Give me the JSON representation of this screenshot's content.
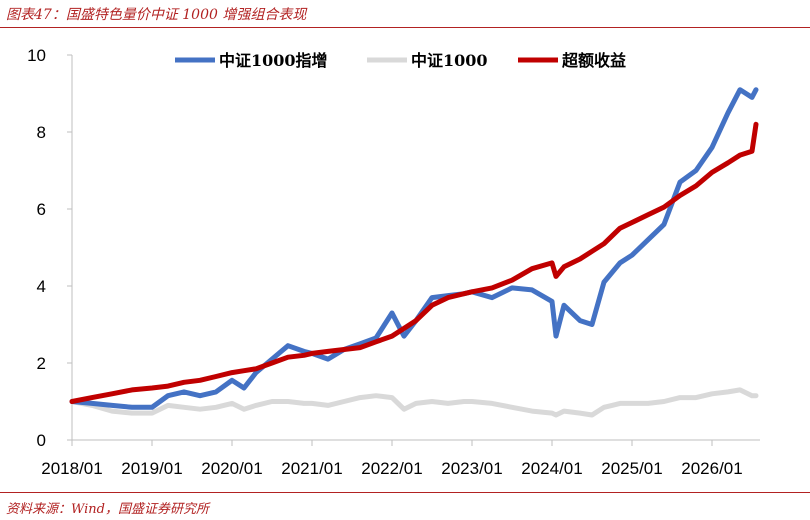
{
  "caption": "图表47：国盛特色量价中证 1000 增强组合表现",
  "source": "资料来源：Wind，国盛证券研究所",
  "chart_data": {
    "type": "line",
    "ylim": [
      0,
      10
    ],
    "yticks": [
      "0",
      "2",
      "4",
      "6",
      "8",
      "10"
    ],
    "xticks": [
      "2018/01",
      "2019/01",
      "2020/01",
      "2021/01",
      "2022/01",
      "2023/01",
      "2024/01",
      "2025/01",
      "2026/01"
    ],
    "x": [
      2018.0,
      2018.25,
      2018.5,
      2018.75,
      2019.0,
      2019.2,
      2019.4,
      2019.6,
      2019.8,
      2020.0,
      2020.15,
      2020.3,
      2020.5,
      2020.7,
      2020.9,
      2021.0,
      2021.2,
      2021.4,
      2021.6,
      2021.8,
      2022.0,
      2022.15,
      2022.3,
      2022.5,
      2022.7,
      2022.9,
      2023.0,
      2023.25,
      2023.5,
      2023.75,
      2024.0,
      2024.05,
      2024.15,
      2024.35,
      2024.5,
      2024.65,
      2024.75,
      2024.85,
      2025.0,
      2025.2,
      2025.4,
      2025.6,
      2025.8,
      2026.0,
      2026.2,
      2026.35,
      2026.5,
      2026.55
    ],
    "series": [
      {
        "name": "中证1000指增",
        "color": "#4472c4",
        "values": [
          1.0,
          0.95,
          0.9,
          0.85,
          0.85,
          1.15,
          1.25,
          1.15,
          1.25,
          1.55,
          1.35,
          1.75,
          2.1,
          2.45,
          2.3,
          2.25,
          2.1,
          2.35,
          2.5,
          2.65,
          3.3,
          2.7,
          3.1,
          3.7,
          3.75,
          3.8,
          3.85,
          3.7,
          3.95,
          3.9,
          3.6,
          2.7,
          3.5,
          3.1,
          3.0,
          4.1,
          4.35,
          4.6,
          4.8,
          5.2,
          5.6,
          6.7,
          7.0,
          7.6,
          8.5,
          9.1,
          8.9,
          9.1
        ]
      },
      {
        "name": "中证1000",
        "color": "#d9d9d9",
        "values": [
          1.0,
          0.9,
          0.75,
          0.7,
          0.7,
          0.9,
          0.85,
          0.8,
          0.85,
          0.95,
          0.8,
          0.9,
          1.0,
          1.0,
          0.95,
          0.95,
          0.9,
          1.0,
          1.1,
          1.15,
          1.1,
          0.8,
          0.95,
          1.0,
          0.95,
          1.0,
          1.0,
          0.95,
          0.85,
          0.75,
          0.7,
          0.65,
          0.75,
          0.7,
          0.65,
          0.85,
          0.9,
          0.95,
          0.95,
          0.95,
          1.0,
          1.1,
          1.1,
          1.2,
          1.25,
          1.3,
          1.15,
          1.15
        ]
      },
      {
        "name": "超额收益",
        "color": "#c00000",
        "values": [
          1.0,
          1.1,
          1.2,
          1.3,
          1.35,
          1.4,
          1.5,
          1.55,
          1.65,
          1.75,
          1.8,
          1.85,
          2.0,
          2.15,
          2.2,
          2.25,
          2.3,
          2.35,
          2.4,
          2.55,
          2.7,
          2.9,
          3.1,
          3.5,
          3.7,
          3.8,
          3.85,
          3.95,
          4.15,
          4.45,
          4.6,
          4.25,
          4.5,
          4.7,
          4.9,
          5.1,
          5.3,
          5.5,
          5.65,
          5.85,
          6.05,
          6.35,
          6.6,
          6.95,
          7.2,
          7.4,
          7.5,
          8.2
        ]
      }
    ]
  }
}
